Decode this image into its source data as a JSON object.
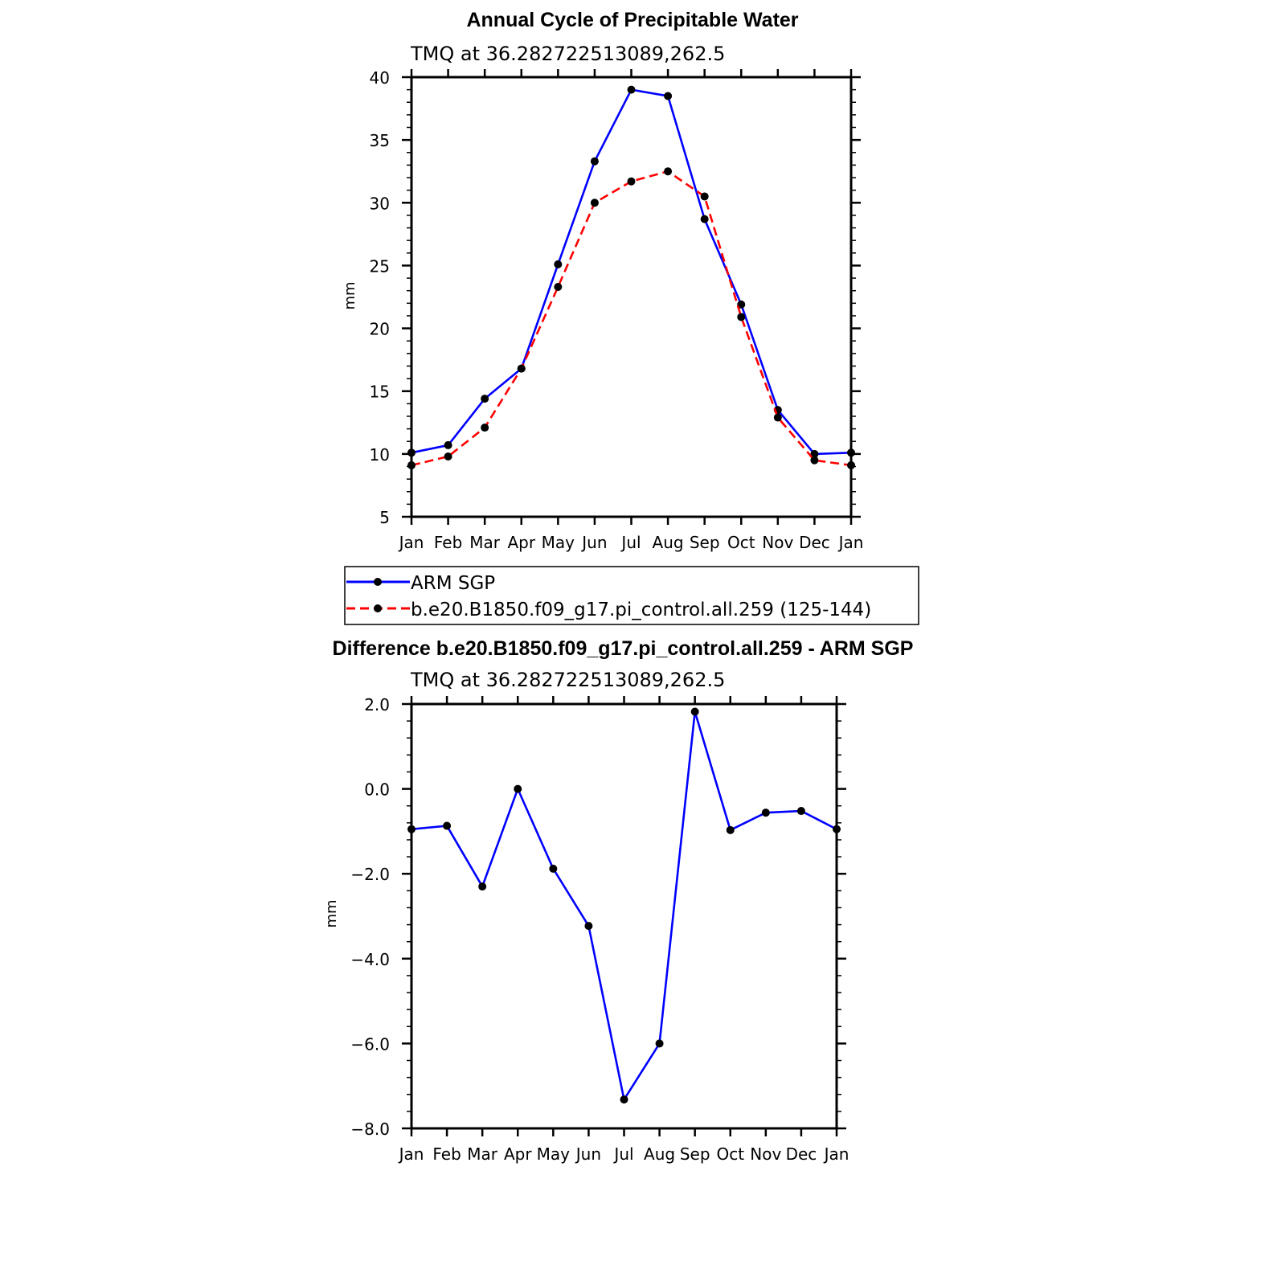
{
  "chart_data": [
    {
      "type": "line",
      "title": "Annual Cycle of Precipitable Water",
      "subtitle": "TMQ at 36.282722513089,262.5",
      "xlabel": "",
      "ylabel": "mm",
      "categories": [
        "Jan",
        "Feb",
        "Mar",
        "Apr",
        "May",
        "Jun",
        "Jul",
        "Aug",
        "Sep",
        "Oct",
        "Nov",
        "Dec",
        "Jan"
      ],
      "ylim": [
        5,
        40
      ],
      "yticks": [
        "5",
        "10",
        "15",
        "20",
        "25",
        "30",
        "35",
        "40"
      ],
      "ytick_values": [
        5,
        10,
        15,
        20,
        25,
        30,
        35,
        40
      ],
      "grid": false,
      "legend_position": "bottom",
      "series": [
        {
          "name": "ARM SGP",
          "color": "#0000ff",
          "dash": "solid",
          "values": [
            10.1,
            10.7,
            14.4,
            16.8,
            25.1,
            33.3,
            39.0,
            38.5,
            28.7,
            21.9,
            13.5,
            10.0,
            10.1
          ]
        },
        {
          "name": "b.e20.B1850.f09_g17.pi_control.all.259 (125-144)",
          "color": "#ff0000",
          "dash": "dashed",
          "values": [
            9.1,
            9.8,
            12.1,
            16.8,
            23.3,
            30.0,
            31.7,
            32.5,
            30.5,
            20.9,
            12.9,
            9.5,
            9.1
          ]
        }
      ]
    },
    {
      "type": "line",
      "title": "Difference b.e20.B1850.f09_g17.pi_control.all.259 - ARM SGP",
      "subtitle": "TMQ at 36.282722513089,262.5",
      "xlabel": "",
      "ylabel": "mm",
      "categories": [
        "Jan",
        "Feb",
        "Mar",
        "Apr",
        "May",
        "Jun",
        "Jul",
        "Aug",
        "Sep",
        "Oct",
        "Nov",
        "Dec",
        "Jan"
      ],
      "ylim": [
        -8,
        2
      ],
      "yticks": [
        "−8.0",
        "−6.0",
        "−4.0",
        "−2.0",
        "0.0",
        "2.0"
      ],
      "ytick_values": [
        -8,
        -6,
        -4,
        -2,
        0,
        2
      ],
      "grid": false,
      "series": [
        {
          "color": "#0000ff",
          "dash": "solid",
          "values": [
            -0.95,
            -0.87,
            -2.3,
            0.0,
            -1.88,
            -3.23,
            -7.32,
            -6.0,
            1.82,
            -0.97,
            -0.56,
            -0.52,
            -0.95
          ]
        }
      ]
    }
  ]
}
